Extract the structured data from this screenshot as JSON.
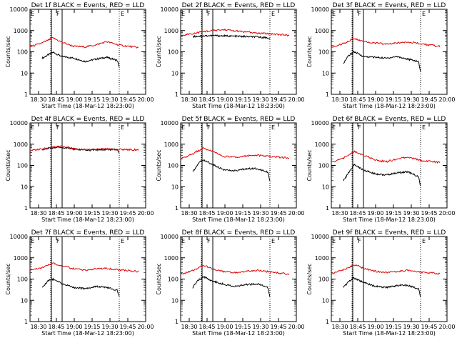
{
  "figure": {
    "xlabel": "Start Time (18-Mar-12 18:23:00)",
    "ylabel": "Counts/sec",
    "x_tick_labels": [
      "18:30",
      "18:45",
      "19:00",
      "19:15",
      "19:30",
      "19:45",
      "20:00"
    ],
    "y_tick_labels": [
      "1",
      "10",
      "100",
      "1000",
      "10000"
    ],
    "colors": {
      "events": "#000000",
      "lld": "#dd0000",
      "axes": "#000000",
      "background": "#ffffff"
    },
    "markers": {
      "start": "E",
      "flare": "F",
      "end": "E"
    }
  },
  "chart_data": [
    {
      "type": "line",
      "title": "Det 1f BLACK = Events, RED = LLD",
      "xlim": [
        18.38,
        20.0
      ],
      "ylim": [
        1,
        10000
      ],
      "yscale": "log",
      "markers_time": {
        "E_start": 18.38,
        "E_dot": 18.67,
        "F": 18.83,
        "E_end": 19.63
      },
      "series": [
        {
          "name": "Events",
          "color": "#000000",
          "x": [
            18.55,
            18.63,
            18.7,
            18.83,
            19.0,
            19.15,
            19.3,
            19.45,
            19.6,
            19.63
          ],
          "values": [
            50,
            70,
            95,
            60,
            50,
            35,
            45,
            55,
            40,
            20
          ]
        },
        {
          "name": "LLD",
          "color": "#dd0000",
          "x": [
            18.38,
            18.55,
            18.7,
            18.83,
            19.0,
            19.15,
            19.3,
            19.45,
            19.65,
            19.9
          ],
          "values": [
            170,
            260,
            450,
            280,
            180,
            170,
            210,
            300,
            200,
            160
          ]
        }
      ]
    },
    {
      "type": "line",
      "title": "Det 2f BLACK = Events, RED = LLD",
      "xlim": [
        18.38,
        20.0
      ],
      "ylim": [
        1,
        10000
      ],
      "yscale": "log",
      "markers_time": {
        "E_start": 18.38,
        "E_dot": 18.67,
        "F": 18.83,
        "E_end": 19.63
      },
      "series": [
        {
          "name": "Events",
          "color": "#000000",
          "x": [
            18.55,
            18.7,
            18.83,
            19.0,
            19.15,
            19.3,
            19.45,
            19.6,
            19.63
          ],
          "values": [
            520,
            560,
            580,
            560,
            540,
            520,
            500,
            460,
            380
          ]
        },
        {
          "name": "LLD",
          "color": "#dd0000",
          "x": [
            18.38,
            18.55,
            18.7,
            18.83,
            19.0,
            19.15,
            19.3,
            19.45,
            19.65,
            19.9
          ],
          "values": [
            600,
            720,
            900,
            1000,
            1100,
            950,
            850,
            750,
            700,
            600
          ]
        }
      ]
    },
    {
      "type": "line",
      "title": "Det 3f BLACK = Events, RED = LLD",
      "xlim": [
        18.38,
        20.0
      ],
      "ylim": [
        1,
        10000
      ],
      "yscale": "log",
      "markers_time": {
        "E_start": 18.38,
        "E_dot": 18.67,
        "F": 18.83,
        "E_end": 19.63
      },
      "series": [
        {
          "name": "Events",
          "color": "#000000",
          "x": [
            18.55,
            18.63,
            18.7,
            18.83,
            19.0,
            19.15,
            19.3,
            19.45,
            19.6,
            19.63
          ],
          "values": [
            30,
            70,
            100,
            60,
            55,
            50,
            60,
            45,
            35,
            12
          ]
        },
        {
          "name": "LLD",
          "color": "#dd0000",
          "x": [
            18.38,
            18.55,
            18.7,
            18.83,
            19.0,
            19.15,
            19.3,
            19.45,
            19.65,
            19.9
          ],
          "values": [
            160,
            250,
            420,
            300,
            260,
            230,
            260,
            300,
            230,
            180
          ]
        }
      ]
    },
    {
      "type": "line",
      "title": "Det 4f BLACK = Events, RED = LLD",
      "xlim": [
        18.38,
        20.0
      ],
      "ylim": [
        1,
        10000
      ],
      "yscale": "log",
      "markers_time": {
        "E_start": 18.38,
        "E_dot": 18.67,
        "F": 18.83,
        "E_end": 19.63
      },
      "series": [
        {
          "name": "Events",
          "color": "#000000",
          "x": [
            18.55,
            18.7,
            18.83,
            19.0,
            19.15,
            19.3,
            19.45,
            19.6,
            19.63
          ],
          "values": [
            560,
            680,
            700,
            580,
            520,
            540,
            560,
            550,
            420
          ]
        },
        {
          "name": "LLD",
          "color": "#dd0000",
          "x": [
            18.38,
            18.55,
            18.7,
            18.83,
            19.0,
            19.15,
            19.3,
            19.45,
            19.65,
            19.9
          ],
          "values": [
            520,
            600,
            750,
            780,
            620,
            560,
            580,
            600,
            560,
            540
          ]
        }
      ]
    },
    {
      "type": "line",
      "title": "Det 5f BLACK = Events, RED = LLD",
      "xlim": [
        18.38,
        20.0
      ],
      "ylim": [
        1,
        10000
      ],
      "yscale": "log",
      "markers_time": {
        "E_start": 18.38,
        "E_dot": 18.67,
        "F": 18.83,
        "E_end": 19.63
      },
      "series": [
        {
          "name": "Events",
          "color": "#000000",
          "x": [
            18.55,
            18.63,
            18.7,
            18.83,
            19.0,
            19.15,
            19.3,
            19.45,
            19.6,
            19.63
          ],
          "values": [
            50,
            130,
            180,
            110,
            60,
            55,
            70,
            70,
            50,
            20
          ]
        },
        {
          "name": "LLD",
          "color": "#dd0000",
          "x": [
            18.38,
            18.55,
            18.7,
            18.83,
            19.0,
            19.15,
            19.3,
            19.45,
            19.65,
            19.9
          ],
          "values": [
            200,
            350,
            650,
            450,
            260,
            250,
            280,
            300,
            260,
            220
          ]
        }
      ]
    },
    {
      "type": "line",
      "title": "Det 6f BLACK = Events, RED = LLD",
      "xlim": [
        18.38,
        20.0
      ],
      "ylim": [
        1,
        10000
      ],
      "yscale": "log",
      "markers_time": {
        "E_start": 18.38,
        "E_dot": 18.67,
        "F": 18.83,
        "E_end": 19.63
      },
      "series": [
        {
          "name": "Events",
          "color": "#000000",
          "x": [
            18.55,
            18.63,
            18.7,
            18.83,
            19.0,
            19.15,
            19.3,
            19.45,
            19.6,
            19.63
          ],
          "values": [
            20,
            50,
            110,
            60,
            40,
            35,
            45,
            50,
            30,
            10
          ]
        },
        {
          "name": "LLD",
          "color": "#dd0000",
          "x": [
            18.38,
            18.55,
            18.7,
            18.83,
            19.0,
            19.15,
            19.3,
            19.45,
            19.65,
            19.9
          ],
          "values": [
            140,
            220,
            450,
            300,
            180,
            150,
            200,
            250,
            170,
            140
          ]
        }
      ]
    },
    {
      "type": "line",
      "title": "Det 7f BLACK = Events, RED = LLD",
      "xlim": [
        18.38,
        20.0
      ],
      "ylim": [
        1,
        10000
      ],
      "yscale": "log",
      "markers_time": {
        "E_start": 18.38,
        "E_dot": 18.67,
        "F": 18.83,
        "E_end": 19.63
      },
      "series": [
        {
          "name": "Events",
          "color": "#000000",
          "x": [
            18.55,
            18.63,
            18.7,
            18.83,
            19.0,
            19.15,
            19.3,
            19.45,
            19.6,
            19.63
          ],
          "values": [
            40,
            80,
            100,
            60,
            40,
            35,
            45,
            40,
            30,
            15
          ]
        },
        {
          "name": "LLD",
          "color": "#dd0000",
          "x": [
            18.38,
            18.55,
            18.7,
            18.83,
            19.0,
            19.15,
            19.3,
            19.45,
            19.65,
            19.9
          ],
          "values": [
            250,
            350,
            550,
            420,
            300,
            260,
            300,
            320,
            260,
            230
          ]
        }
      ]
    },
    {
      "type": "line",
      "title": "Det 8f BLACK = Events, RED = LLD",
      "xlim": [
        18.38,
        20.0
      ],
      "ylim": [
        1,
        10000
      ],
      "yscale": "log",
      "markers_time": {
        "E_start": 18.38,
        "E_dot": 18.67,
        "F": 18.83,
        "E_end": 19.63
      },
      "series": [
        {
          "name": "Events",
          "color": "#000000",
          "x": [
            18.55,
            18.63,
            18.7,
            18.83,
            19.0,
            19.15,
            19.3,
            19.45,
            19.6,
            19.63
          ],
          "values": [
            40,
            90,
            130,
            80,
            55,
            45,
            55,
            60,
            40,
            15
          ]
        },
        {
          "name": "LLD",
          "color": "#dd0000",
          "x": [
            18.38,
            18.55,
            18.7,
            18.83,
            19.0,
            19.15,
            19.3,
            19.45,
            19.65,
            19.9
          ],
          "values": [
            170,
            250,
            450,
            300,
            220,
            200,
            230,
            260,
            210,
            170
          ]
        }
      ]
    },
    {
      "type": "line",
      "title": "Det 9f BLACK = Events, RED = LLD",
      "xlim": [
        18.38,
        20.0
      ],
      "ylim": [
        1,
        10000
      ],
      "yscale": "log",
      "markers_time": {
        "E_start": 18.38,
        "E_dot": 18.67,
        "F": 18.83,
        "E_end": 19.63
      },
      "series": [
        {
          "name": "Events",
          "color": "#000000",
          "x": [
            18.55,
            18.63,
            18.7,
            18.83,
            19.0,
            19.15,
            19.3,
            19.45,
            19.6,
            19.63
          ],
          "values": [
            40,
            80,
            110,
            70,
            45,
            40,
            50,
            50,
            35,
            15
          ]
        },
        {
          "name": "LLD",
          "color": "#dd0000",
          "x": [
            18.38,
            18.55,
            18.7,
            18.83,
            19.0,
            19.15,
            19.3,
            19.45,
            19.65,
            19.9
          ],
          "values": [
            180,
            270,
            480,
            330,
            230,
            200,
            230,
            260,
            210,
            180
          ]
        }
      ]
    }
  ]
}
